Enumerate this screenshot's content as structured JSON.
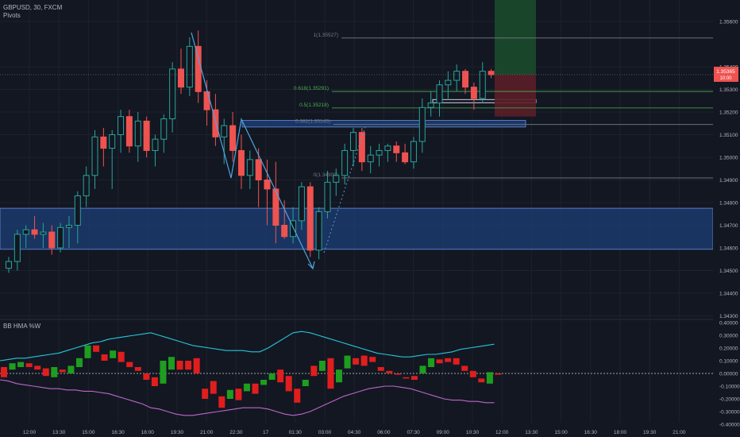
{
  "header": {
    "symbol_line": "GBPUSD, 30, FXCM",
    "indicator": "Pivots",
    "oscillator": "BB HMA %W"
  },
  "colors": {
    "background": "#131722",
    "grid": "#1e222d",
    "up": "#26a69a",
    "down": "#ef5350",
    "up_body": "#131722",
    "down_body": "#ef5350",
    "zone_fill": "#1c3f75",
    "zone_border": "#5b7bc2",
    "pattern_line": "#4fa3e0",
    "fib_line": "#787b86",
    "fib_green": "#4caf50",
    "target_fill": "#1b4a2b",
    "stop_fill": "#5a1e28",
    "price_label": "#ef5350",
    "osc_upper": "#26c6da",
    "osc_lower": "#ba68c8",
    "osc_up": "#1e9e1e",
    "osc_down": "#e01e1e",
    "axis_text": "#b2b5be"
  },
  "price_axis": {
    "labels": [
      "1.35600",
      "1.35400",
      "1.35300",
      "1.35200",
      "1.35100",
      "1.35000",
      "1.34900",
      "1.34800",
      "1.34700",
      "1.34600",
      "1.34500",
      "1.34400",
      "1.34300"
    ],
    "current_price": "1.35365",
    "countdown": "10:00"
  },
  "time_axis": {
    "labels": [
      "12:00",
      "13:30",
      "15:00",
      "16:30",
      "18:00",
      "19:30",
      "21:00",
      "22:30",
      "17",
      "01:30",
      "03:00",
      "04:30",
      "06:00",
      "07:30",
      "09:00",
      "10:30",
      "12:00",
      "13:30",
      "15:00",
      "16:30",
      "18:00",
      "19:30",
      "21:00"
    ]
  },
  "oscillator_axis": {
    "labels": [
      "0.40000",
      "0.30000",
      "0.20000",
      "0.10000",
      "0.00000",
      "-0.10000",
      "-0.20000",
      "-0.30000",
      "-0.40000"
    ]
  },
  "fibonacci": [
    {
      "label": "1(1.35527)",
      "price": 1.35527
    },
    {
      "label": "0.618(1.35291)",
      "price": 1.35291
    },
    {
      "label": "0.5(1.35218)",
      "price": 1.35218
    },
    {
      "label": "0.382(1.35145)",
      "price": 1.35145
    },
    {
      "label": "0(1.34909)",
      "price": 1.34909
    }
  ],
  "zones": [
    {
      "label": "demand-zone",
      "top": 1.34775,
      "bottom": 1.34594
    },
    {
      "label": "breakout-box",
      "top": 1.35163,
      "bottom": 1.35134
    }
  ],
  "chart_data": {
    "type": "candlestick",
    "title": "GBPUSD, 30, FXCM",
    "ylim": [
      1.343,
      1.3575
    ],
    "candles": [
      [
        1.3451,
        1.3456,
        1.3449,
        1.3454
      ],
      [
        1.3454,
        1.3468,
        1.345,
        1.3466
      ],
      [
        1.3466,
        1.347,
        1.346,
        1.3468
      ],
      [
        1.3468,
        1.3474,
        1.3464,
        1.3466
      ],
      [
        1.3466,
        1.3471,
        1.346,
        1.3467
      ],
      [
        1.3467,
        1.347,
        1.3457,
        1.346
      ],
      [
        1.346,
        1.3471,
        1.3458,
        1.3469
      ],
      [
        1.3469,
        1.3474,
        1.346,
        1.347
      ],
      [
        1.347,
        1.3485,
        1.3462,
        1.3483
      ],
      [
        1.3483,
        1.3496,
        1.3478,
        1.3492
      ],
      [
        1.3492,
        1.3512,
        1.3486,
        1.3509
      ],
      [
        1.3509,
        1.3513,
        1.3496,
        1.3504
      ],
      [
        1.3504,
        1.3512,
        1.3486,
        1.351
      ],
      [
        1.351,
        1.3521,
        1.3502,
        1.3518
      ],
      [
        1.3518,
        1.3521,
        1.3502,
        1.3505
      ],
      [
        1.3505,
        1.352,
        1.3498,
        1.3516
      ],
      [
        1.3516,
        1.3518,
        1.35,
        1.3503
      ],
      [
        1.3503,
        1.351,
        1.3496,
        1.3508
      ],
      [
        1.3508,
        1.3519,
        1.3502,
        1.3517
      ],
      [
        1.3517,
        1.3542,
        1.3511,
        1.3539
      ],
      [
        1.3539,
        1.3548,
        1.3528,
        1.3531
      ],
      [
        1.3531,
        1.3553,
        1.3527,
        1.3549
      ],
      [
        1.3549,
        1.3556,
        1.3524,
        1.3529
      ],
      [
        1.3529,
        1.3534,
        1.3514,
        1.3521
      ],
      [
        1.3521,
        1.3528,
        1.3505,
        1.3509
      ],
      [
        1.3509,
        1.3517,
        1.3497,
        1.3514
      ],
      [
        1.3514,
        1.352,
        1.3498,
        1.3503
      ],
      [
        1.3503,
        1.351,
        1.3486,
        1.3492
      ],
      [
        1.3492,
        1.3503,
        1.3486,
        1.3499
      ],
      [
        1.3499,
        1.3504,
        1.3478,
        1.349
      ],
      [
        1.349,
        1.3499,
        1.347,
        1.3486
      ],
      [
        1.3486,
        1.3498,
        1.3462,
        1.347
      ],
      [
        1.347,
        1.3481,
        1.3464,
        1.3465
      ],
      [
        1.3465,
        1.3478,
        1.3462,
        1.3472
      ],
      [
        1.3472,
        1.3489,
        1.3468,
        1.3487
      ],
      [
        1.3487,
        1.3489,
        1.3456,
        1.3459
      ],
      [
        1.3459,
        1.3478,
        1.3455,
        1.3476
      ],
      [
        1.3476,
        1.3494,
        1.3473,
        1.3489
      ],
      [
        1.3489,
        1.3495,
        1.3483,
        1.3492
      ],
      [
        1.3492,
        1.3506,
        1.3488,
        1.3503
      ],
      [
        1.3503,
        1.3513,
        1.3496,
        1.3511
      ],
      [
        1.3511,
        1.3513,
        1.3494,
        1.3498
      ],
      [
        1.3498,
        1.3505,
        1.3493,
        1.3501
      ],
      [
        1.3501,
        1.3506,
        1.3496,
        1.3503
      ],
      [
        1.3503,
        1.3506,
        1.3498,
        1.3505
      ],
      [
        1.3505,
        1.3507,
        1.3498,
        1.3502
      ],
      [
        1.3502,
        1.3506,
        1.3497,
        1.3498
      ],
      [
        1.3498,
        1.3509,
        1.3495,
        1.3507
      ],
      [
        1.3507,
        1.3526,
        1.3502,
        1.3522
      ],
      [
        1.3522,
        1.3529,
        1.3518,
        1.3524
      ],
      [
        1.3524,
        1.3534,
        1.3518,
        1.3532
      ],
      [
        1.3532,
        1.3538,
        1.3526,
        1.3534
      ],
      [
        1.3534,
        1.3541,
        1.3529,
        1.3538
      ],
      [
        1.3538,
        1.3539,
        1.3528,
        1.3531
      ],
      [
        1.3531,
        1.3533,
        1.3521,
        1.3526
      ],
      [
        1.3526,
        1.3542,
        1.3524,
        1.3538
      ],
      [
        1.3538,
        1.3539,
        1.3535,
        1.35365
      ]
    ],
    "oscillator": {
      "ylim": [
        -0.4,
        0.4
      ],
      "histogram": [
        [
          0.05,
          -0.03
        ],
        [
          0.03,
          0.08
        ],
        [
          0.05,
          0.09
        ],
        [
          0.08,
          0.05
        ],
        [
          0.06,
          0.03
        ],
        [
          0.04,
          -0.02
        ],
        [
          -0.03,
          0.05
        ],
        [
          0.03,
          0.01
        ],
        [
          0.0,
          0.06
        ],
        [
          0.05,
          0.12
        ],
        [
          0.12,
          0.22
        ],
        [
          0.22,
          0.17
        ],
        [
          0.15,
          0.1
        ],
        [
          0.12,
          0.18
        ],
        [
          0.17,
          0.09
        ],
        [
          0.09,
          0.05
        ],
        [
          0.05,
          0.02
        ],
        [
          0.0,
          -0.05
        ],
        [
          -0.03,
          -0.1
        ],
        [
          -0.08,
          0.1
        ],
        [
          0.03,
          0.13
        ],
        [
          0.1,
          0.03
        ],
        [
          0.1,
          0.03
        ],
        [
          0.12,
          0.0
        ],
        [
          -0.12,
          -0.2
        ],
        [
          -0.06,
          -0.16
        ],
        [
          -0.18,
          -0.27
        ],
        [
          -0.2,
          -0.13
        ],
        [
          -0.12,
          -0.21
        ],
        [
          -0.14,
          -0.08
        ],
        [
          -0.08,
          -0.16
        ],
        [
          -0.09,
          -0.05
        ],
        [
          -0.05,
          0.0
        ],
        [
          0.03,
          -0.07
        ],
        [
          -0.02,
          -0.14
        ],
        [
          -0.12,
          -0.23
        ],
        [
          -0.1,
          -0.05
        ],
        [
          0.06,
          -0.02
        ],
        [
          0.02,
          0.1
        ],
        [
          0.12,
          -0.12
        ],
        [
          -0.07,
          0.03
        ],
        [
          0.04,
          0.14
        ],
        [
          0.12,
          0.07
        ],
        [
          0.14,
          0.06
        ],
        [
          0.13,
          0.09
        ],
        [
          0.05,
          0.02
        ],
        [
          0.02,
          0.0
        ],
        [
          0.0,
          -0.01
        ],
        [
          -0.03,
          -0.04
        ],
        [
          -0.02,
          -0.05
        ],
        [
          0.0,
          0.06
        ],
        [
          0.05,
          0.12
        ],
        [
          0.11,
          0.08
        ],
        [
          0.12,
          0.09
        ],
        [
          0.12,
          0.07
        ],
        [
          0.06,
          0.02
        ],
        [
          0.02,
          -0.03
        ],
        [
          -0.04,
          -0.07
        ],
        [
          -0.08,
          0.01
        ],
        [
          0.0,
          -0.01
        ]
      ],
      "upper_band": [
        0.1,
        0.11,
        0.12,
        0.12,
        0.13,
        0.14,
        0.15,
        0.16,
        0.18,
        0.2,
        0.22,
        0.24,
        0.25,
        0.27,
        0.28,
        0.29,
        0.3,
        0.31,
        0.32,
        0.3,
        0.28,
        0.26,
        0.24,
        0.22,
        0.21,
        0.2,
        0.19,
        0.18,
        0.18,
        0.18,
        0.17,
        0.17,
        0.2,
        0.24,
        0.28,
        0.32,
        0.33,
        0.32,
        0.3,
        0.28,
        0.26,
        0.24,
        0.22,
        0.2,
        0.18,
        0.16,
        0.15,
        0.14,
        0.13,
        0.13,
        0.14,
        0.15,
        0.15,
        0.16,
        0.17,
        0.19,
        0.2,
        0.21,
        0.22,
        0.23
      ],
      "lower_band": [
        -0.05,
        -0.06,
        -0.08,
        -0.09,
        -0.1,
        -0.11,
        -0.12,
        -0.12,
        -0.13,
        -0.13,
        -0.14,
        -0.14,
        -0.15,
        -0.16,
        -0.18,
        -0.2,
        -0.22,
        -0.24,
        -0.27,
        -0.28,
        -0.3,
        -0.32,
        -0.33,
        -0.33,
        -0.32,
        -0.31,
        -0.3,
        -0.29,
        -0.28,
        -0.27,
        -0.27,
        -0.27,
        -0.28,
        -0.3,
        -0.32,
        -0.33,
        -0.32,
        -0.3,
        -0.27,
        -0.24,
        -0.21,
        -0.18,
        -0.16,
        -0.14,
        -0.12,
        -0.11,
        -0.1,
        -0.1,
        -0.11,
        -0.12,
        -0.14,
        -0.16,
        -0.18,
        -0.2,
        -0.21,
        -0.21,
        -0.22,
        -0.22,
        -0.23,
        -0.23
      ]
    }
  }
}
